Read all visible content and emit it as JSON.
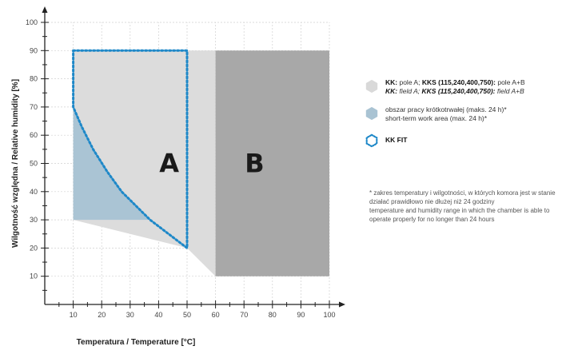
{
  "chart_data": {
    "type": "area",
    "title": "",
    "xlabel": "Temperatura / Temperature [°C]",
    "ylabel": "Wilgotność względna / Relative humidity [%]",
    "xlim": [
      0,
      100
    ],
    "ylim": [
      0,
      100
    ],
    "x_ticks": [
      "10",
      "20",
      "30",
      "40",
      "50",
      "60",
      "70",
      "80",
      "90",
      "100"
    ],
    "y_ticks": [
      "10",
      "20",
      "30",
      "40",
      "50",
      "60",
      "70",
      "80",
      "90",
      "100"
    ],
    "grid": true,
    "zones": [
      {
        "label": "A",
        "color": "#dcdcdc",
        "points": [
          [
            10,
            90
          ],
          [
            60,
            90
          ],
          [
            60,
            10
          ],
          [
            50,
            20
          ],
          [
            10,
            30
          ]
        ]
      },
      {
        "label": "B",
        "color": "#a8a8a8",
        "points": [
          [
            60,
            90
          ],
          [
            100,
            90
          ],
          [
            100,
            10
          ],
          [
            60,
            10
          ]
        ]
      },
      {
        "label": "",
        "color": "#aac4d4",
        "points": [
          [
            10,
            70
          ],
          [
            13,
            63
          ],
          [
            17,
            55
          ],
          [
            22,
            47
          ],
          [
            27,
            40
          ],
          [
            32,
            35
          ],
          [
            37,
            30
          ],
          [
            10,
            30
          ]
        ]
      }
    ],
    "kk_fit_outline": {
      "color": "#1e88c8",
      "points": [
        [
          10,
          90
        ],
        [
          50,
          90
        ],
        [
          50,
          20
        ],
        [
          37,
          30
        ],
        [
          32,
          35
        ],
        [
          27,
          40
        ],
        [
          22,
          47
        ],
        [
          17,
          55
        ],
        [
          13,
          63
        ],
        [
          10,
          70
        ],
        [
          10,
          90
        ]
      ]
    },
    "zone_labels": [
      {
        "text": "A",
        "x": 44,
        "y": 50
      },
      {
        "text": "B",
        "x": 74,
        "y": 50
      }
    ]
  },
  "legend": {
    "items": [
      {
        "swatch": "grey-hexagon",
        "color": "#d9d9d9",
        "bold1": "KK:",
        "text1": " pole A; ",
        "bold2": "KKS (115,240,400,750):",
        "text2": " pole A+B",
        "line2_bold1": "KK:",
        "line2_text1": " field A; ",
        "line2_bold2": "KKS (115,240,400,750):",
        "line2_text2": " field A+B"
      },
      {
        "swatch": "blue-hexagon",
        "color": "#a9c3d3",
        "line1": "obszar pracy krótkotrwałej (maks. 24 h)*",
        "line2": "short-term work area (max. 24 h)*"
      },
      {
        "swatch": "dotted-hexagon",
        "color": "#1e88c8",
        "bold": "KK FIT"
      }
    ]
  },
  "footnote": {
    "pl": "* zakres temperatury i wilgotności, w których komora jest w stanie działać prawidłowo nie dłużej niż 24 godziny",
    "en": "temperature and humidity range in which the chamber is able to operate properly for no longer than 24 hours"
  }
}
